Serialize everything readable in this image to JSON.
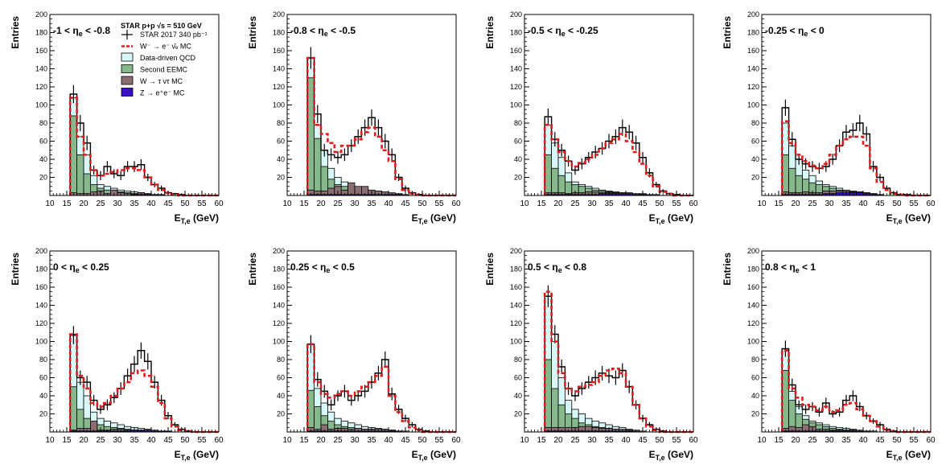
{
  "common": {
    "ylabel": "Entries",
    "xlabel_main": "E",
    "xlabel_sub": "T,e",
    "xlabel_unit": " (GeV)",
    "xlim": [
      10,
      60
    ],
    "ylim": [
      0,
      200
    ],
    "xticks": [
      10,
      15,
      20,
      25,
      30,
      35,
      40,
      45,
      50,
      55,
      60
    ],
    "yticks": [
      20,
      40,
      60,
      80,
      100,
      120,
      140,
      160,
      180,
      200
    ],
    "bin_width": 2
  },
  "legend": {
    "header_left": "STAR p+p",
    "header_right": "√s = 510 GeV",
    "items": [
      {
        "key": "data",
        "label": "STAR 2017 340 pb⁻¹"
      },
      {
        "key": "wmc",
        "label": "W⁻ → e⁻ ν̄ₑ MC"
      },
      {
        "key": "qcd",
        "label": "Data-driven QCD"
      },
      {
        "key": "eemc",
        "label": "Second EEMC"
      },
      {
        "key": "wtau",
        "label": "W → τ ντ MC"
      },
      {
        "key": "z",
        "label": "Z → e⁺e⁻ MC"
      }
    ]
  },
  "colors": {
    "qcd": "#d8f7f7",
    "eemc": "#86b88c",
    "wtau": "#8a6e74",
    "z": "#3b10c8",
    "wmc": "#e31b1b",
    "data": "#000000"
  },
  "chart_data": [
    {
      "type": "histogram",
      "eta_lo": "-1",
      "eta_hi": "-0.8",
      "x_edges": [
        16,
        18,
        20,
        22,
        24,
        26,
        28,
        30,
        32,
        34,
        36,
        38,
        40,
        42,
        44,
        46,
        48,
        50,
        52,
        54,
        56,
        58,
        60
      ],
      "data": [
        112,
        80,
        58,
        28,
        22,
        32,
        24,
        22,
        32,
        32,
        34,
        20,
        12,
        8,
        3,
        2,
        1,
        0,
        0,
        0,
        0,
        0
      ],
      "data_err": [
        10,
        9,
        8,
        5,
        5,
        6,
        5,
        5,
        6,
        6,
        6,
        4,
        3,
        3,
        2,
        1,
        1,
        0,
        0,
        0,
        0,
        0
      ],
      "wmc": [
        108,
        65,
        45,
        28,
        22,
        24,
        26,
        28,
        30,
        30,
        28,
        20,
        12,
        6,
        3,
        1,
        0,
        0,
        0,
        0,
        0,
        0
      ],
      "qcd": [
        108,
        65,
        45,
        22,
        12,
        10,
        8,
        6,
        5,
        4,
        3,
        2,
        1,
        1,
        0,
        0,
        0,
        0,
        0,
        0,
        0,
        0
      ],
      "eemc": [
        88,
        45,
        24,
        12,
        8,
        6,
        5,
        4,
        3,
        2,
        2,
        1,
        1,
        0,
        0,
        0,
        0,
        0,
        0,
        0,
        0,
        0
      ],
      "wtau": [
        3,
        2,
        2,
        4,
        5,
        2,
        6,
        3,
        2,
        2,
        3,
        2,
        1,
        1,
        0,
        0,
        0,
        0,
        0,
        0,
        0,
        0
      ],
      "z": [
        0,
        0,
        0,
        0,
        0,
        0,
        0,
        0,
        0,
        1,
        1,
        1,
        1,
        1,
        0,
        0,
        0,
        0,
        0,
        0,
        0,
        0
      ]
    },
    {
      "type": "histogram",
      "eta_lo": "-0.8",
      "eta_hi": "-0.5",
      "x_edges": [
        16,
        18,
        20,
        22,
        24,
        26,
        28,
        30,
        32,
        34,
        36,
        38,
        40,
        42,
        44,
        46,
        48,
        50,
        52,
        54,
        56,
        58,
        60
      ],
      "data": [
        152,
        90,
        50,
        45,
        42,
        45,
        55,
        65,
        75,
        86,
        75,
        60,
        45,
        20,
        8,
        3,
        1,
        0,
        0,
        0,
        0,
        0
      ],
      "data_err": [
        12,
        10,
        7,
        7,
        7,
        7,
        7,
        8,
        9,
        9,
        9,
        8,
        7,
        4,
        3,
        2,
        1,
        0,
        0,
        0,
        0,
        0
      ],
      "wmc": [
        152,
        78,
        68,
        58,
        48,
        55,
        55,
        62,
        70,
        75,
        65,
        50,
        38,
        18,
        6,
        2,
        1,
        0,
        0,
        0,
        0,
        0
      ],
      "qcd": [
        152,
        78,
        50,
        30,
        20,
        15,
        10,
        8,
        6,
        5,
        4,
        3,
        2,
        1,
        0,
        0,
        0,
        0,
        0,
        0,
        0,
        0
      ],
      "eemc": [
        130,
        63,
        32,
        18,
        12,
        10,
        8,
        6,
        4,
        3,
        2,
        2,
        1,
        0,
        0,
        0,
        0,
        0,
        0,
        0,
        0,
        0
      ],
      "wtau": [
        6,
        5,
        5,
        8,
        10,
        6,
        14,
        10,
        10,
        6,
        5,
        4,
        3,
        2,
        1,
        0,
        0,
        0,
        0,
        0,
        0,
        0
      ],
      "z": [
        1,
        1,
        1,
        1,
        1,
        1,
        1,
        1,
        1,
        1,
        1,
        1,
        1,
        1,
        0,
        0,
        0,
        0,
        0,
        0,
        0,
        0
      ]
    },
    {
      "type": "histogram",
      "eta_lo": "-0.5",
      "eta_hi": "-0.25",
      "x_edges": [
        16,
        18,
        20,
        22,
        24,
        26,
        28,
        30,
        32,
        34,
        36,
        38,
        40,
        42,
        44,
        46,
        48,
        50,
        52,
        54,
        56,
        58,
        60
      ],
      "data": [
        87,
        62,
        50,
        38,
        28,
        35,
        42,
        48,
        52,
        60,
        65,
        75,
        70,
        58,
        42,
        25,
        12,
        5,
        2,
        1,
        0,
        0
      ],
      "data_err": [
        9,
        8,
        7,
        6,
        5,
        6,
        6,
        7,
        7,
        8,
        8,
        9,
        8,
        8,
        6,
        5,
        3,
        2,
        1,
        1,
        0,
        0
      ],
      "wmc": [
        78,
        62,
        48,
        38,
        32,
        36,
        40,
        45,
        52,
        58,
        62,
        68,
        60,
        48,
        35,
        22,
        10,
        4,
        2,
        0,
        0,
        0
      ],
      "qcd": [
        78,
        58,
        42,
        25,
        15,
        12,
        10,
        8,
        6,
        5,
        4,
        3,
        2,
        1,
        1,
        0,
        0,
        0,
        0,
        0,
        0,
        0
      ],
      "eemc": [
        45,
        30,
        22,
        15,
        12,
        10,
        8,
        6,
        5,
        4,
        3,
        2,
        2,
        1,
        1,
        0,
        0,
        0,
        0,
        0,
        0,
        0
      ],
      "wtau": [
        3,
        3,
        3,
        2,
        3,
        3,
        4,
        4,
        3,
        3,
        3,
        3,
        3,
        2,
        2,
        1,
        1,
        0,
        0,
        0,
        0,
        0
      ],
      "z": [
        1,
        1,
        1,
        1,
        1,
        1,
        1,
        1,
        2,
        2,
        2,
        2,
        2,
        1,
        1,
        1,
        0,
        0,
        0,
        0,
        0,
        0
      ]
    },
    {
      "type": "histogram",
      "eta_lo": "-0.25",
      "eta_hi": "0",
      "x_edges": [
        16,
        18,
        20,
        22,
        24,
        26,
        28,
        30,
        32,
        34,
        36,
        38,
        40,
        42,
        44,
        46,
        48,
        50,
        52,
        54,
        56,
        58,
        60
      ],
      "data": [
        97,
        62,
        40,
        35,
        32,
        30,
        32,
        40,
        55,
        70,
        72,
        80,
        68,
        32,
        20,
        8,
        3,
        1,
        1,
        0,
        0,
        0
      ],
      "data_err": [
        9,
        8,
        6,
        6,
        6,
        6,
        6,
        6,
        7,
        8,
        8,
        9,
        8,
        6,
        4,
        3,
        2,
        1,
        1,
        0,
        0,
        0
      ],
      "wmc": [
        82,
        58,
        45,
        38,
        33,
        30,
        35,
        45,
        55,
        62,
        65,
        65,
        55,
        30,
        15,
        6,
        2,
        1,
        0,
        0,
        0,
        0
      ],
      "qcd": [
        80,
        55,
        40,
        28,
        22,
        16,
        12,
        10,
        8,
        6,
        5,
        4,
        3,
        2,
        1,
        0,
        0,
        0,
        0,
        0,
        0,
        0
      ],
      "eemc": [
        45,
        30,
        22,
        18,
        14,
        12,
        10,
        8,
        6,
        5,
        4,
        3,
        2,
        1,
        1,
        0,
        0,
        0,
        0,
        0,
        0,
        0
      ],
      "wtau": [
        4,
        3,
        3,
        4,
        3,
        3,
        5,
        5,
        5,
        5,
        4,
        4,
        3,
        2,
        1,
        0,
        0,
        0,
        0,
        0,
        0,
        0
      ],
      "z": [
        1,
        1,
        1,
        1,
        1,
        1,
        2,
        2,
        3,
        3,
        3,
        3,
        2,
        1,
        1,
        0,
        0,
        0,
        0,
        0,
        0,
        0
      ]
    },
    {
      "type": "histogram",
      "eta_lo": "0",
      "eta_hi": "0.25",
      "x_edges": [
        16,
        18,
        20,
        22,
        24,
        26,
        28,
        30,
        32,
        34,
        36,
        38,
        40,
        42,
        44,
        46,
        48,
        50,
        52,
        54,
        56,
        58,
        60
      ],
      "data": [
        107,
        60,
        55,
        35,
        25,
        30,
        38,
        48,
        62,
        75,
        90,
        78,
        55,
        35,
        18,
        8,
        3,
        1,
        0,
        0,
        0,
        0
      ],
      "data_err": [
        10,
        8,
        7,
        6,
        5,
        6,
        6,
        7,
        8,
        9,
        9,
        9,
        7,
        6,
        4,
        3,
        2,
        1,
        0,
        0,
        0,
        0
      ],
      "wmc": [
        108,
        62,
        48,
        32,
        28,
        32,
        40,
        48,
        55,
        65,
        68,
        62,
        50,
        32,
        15,
        6,
        2,
        1,
        0,
        0,
        0,
        0
      ],
      "qcd": [
        108,
        55,
        40,
        22,
        15,
        12,
        10,
        8,
        6,
        5,
        4,
        3,
        2,
        1,
        1,
        0,
        0,
        0,
        0,
        0,
        0,
        0
      ],
      "eemc": [
        50,
        25,
        15,
        10,
        8,
        6,
        5,
        4,
        3,
        2,
        2,
        1,
        1,
        0,
        0,
        0,
        0,
        0,
        0,
        0,
        0,
        0
      ],
      "wtau": [
        2,
        4,
        4,
        12,
        2,
        2,
        3,
        3,
        2,
        2,
        2,
        2,
        1,
        1,
        0,
        0,
        0,
        0,
        0,
        0,
        0,
        0
      ],
      "z": [
        1,
        1,
        1,
        1,
        1,
        1,
        1,
        1,
        1,
        2,
        2,
        2,
        1,
        1,
        1,
        0,
        0,
        0,
        0,
        0,
        0,
        0
      ]
    },
    {
      "type": "histogram",
      "eta_lo": "0.25",
      "eta_hi": "0.5",
      "x_edges": [
        16,
        18,
        20,
        22,
        24,
        26,
        28,
        30,
        32,
        34,
        36,
        38,
        40,
        42,
        44,
        46,
        48,
        50,
        52,
        54,
        56,
        58,
        60
      ],
      "data": [
        97,
        58,
        45,
        30,
        40,
        45,
        35,
        40,
        45,
        55,
        65,
        80,
        42,
        25,
        15,
        8,
        3,
        1,
        0,
        0,
        0,
        0
      ],
      "data_err": [
        10,
        8,
        7,
        6,
        6,
        7,
        6,
        6,
        7,
        7,
        8,
        9,
        7,
        5,
        4,
        3,
        2,
        1,
        0,
        0,
        0,
        0
      ],
      "wmc": [
        97,
        55,
        42,
        38,
        42,
        45,
        40,
        45,
        50,
        55,
        62,
        72,
        40,
        22,
        12,
        5,
        2,
        0,
        0,
        0,
        0,
        0
      ],
      "qcd": [
        97,
        48,
        32,
        22,
        15,
        12,
        10,
        8,
        6,
        5,
        4,
        3,
        2,
        1,
        1,
        0,
        0,
        0,
        0,
        0,
        0,
        0
      ],
      "eemc": [
        46,
        28,
        18,
        12,
        8,
        6,
        5,
        4,
        3,
        3,
        2,
        2,
        1,
        1,
        0,
        0,
        0,
        0,
        0,
        0,
        0,
        0
      ],
      "wtau": [
        5,
        3,
        8,
        3,
        4,
        4,
        3,
        4,
        3,
        3,
        3,
        3,
        2,
        1,
        0,
        0,
        0,
        0,
        0,
        0,
        0,
        0
      ],
      "z": [
        1,
        1,
        1,
        1,
        1,
        1,
        1,
        1,
        1,
        1,
        1,
        1,
        1,
        0,
        0,
        0,
        0,
        0,
        0,
        0,
        0,
        0
      ]
    },
    {
      "type": "histogram",
      "eta_lo": "0.5",
      "eta_hi": "0.8",
      "x_edges": [
        16,
        18,
        20,
        22,
        24,
        26,
        28,
        30,
        32,
        34,
        36,
        38,
        40,
        42,
        44,
        46,
        48,
        50,
        52,
        54,
        56,
        58,
        60
      ],
      "data": [
        150,
        108,
        72,
        48,
        40,
        48,
        55,
        60,
        65,
        62,
        60,
        68,
        50,
        30,
        15,
        8,
        3,
        1,
        0,
        0,
        0,
        0
      ],
      "data_err": [
        12,
        10,
        8,
        7,
        6,
        7,
        7,
        8,
        8,
        8,
        8,
        8,
        7,
        5,
        4,
        3,
        2,
        1,
        0,
        0,
        0,
        0
      ],
      "wmc": [
        155,
        100,
        65,
        48,
        45,
        50,
        52,
        55,
        62,
        68,
        70,
        65,
        50,
        30,
        15,
        6,
        2,
        0,
        0,
        0,
        0,
        0
      ],
      "qcd": [
        150,
        100,
        60,
        35,
        25,
        20,
        15,
        12,
        10,
        8,
        6,
        5,
        3,
        2,
        1,
        0,
        0,
        0,
        0,
        0,
        0,
        0
      ],
      "eemc": [
        80,
        48,
        30,
        20,
        15,
        10,
        8,
        6,
        5,
        4,
        3,
        2,
        2,
        1,
        0,
        0,
        0,
        0,
        0,
        0,
        0,
        0
      ],
      "wtau": [
        5,
        5,
        5,
        5,
        5,
        6,
        6,
        5,
        4,
        4,
        3,
        3,
        2,
        1,
        0,
        0,
        0,
        0,
        0,
        0,
        0,
        0
      ],
      "z": [
        1,
        1,
        1,
        1,
        1,
        1,
        1,
        1,
        1,
        1,
        1,
        1,
        1,
        0,
        0,
        0,
        0,
        0,
        0,
        0,
        0,
        0
      ]
    },
    {
      "type": "histogram",
      "eta_lo": "0.8",
      "eta_hi": "1",
      "x_edges": [
        16,
        18,
        20,
        22,
        24,
        26,
        28,
        30,
        32,
        34,
        36,
        38,
        40,
        42,
        44,
        46,
        48,
        50,
        52,
        54,
        56,
        58,
        60
      ],
      "data": [
        92,
        52,
        30,
        25,
        28,
        22,
        32,
        20,
        22,
        35,
        40,
        28,
        18,
        12,
        8,
        3,
        1,
        0,
        0,
        0,
        0,
        0
      ],
      "data_err": [
        9,
        7,
        5,
        5,
        5,
        5,
        6,
        4,
        5,
        6,
        6,
        5,
        4,
        3,
        3,
        2,
        1,
        0,
        0,
        0,
        0,
        0
      ],
      "wmc": [
        90,
        48,
        38,
        30,
        28,
        24,
        28,
        22,
        24,
        30,
        32,
        25,
        18,
        12,
        6,
        2,
        1,
        0,
        0,
        0,
        0,
        0
      ],
      "qcd": [
        92,
        45,
        28,
        18,
        12,
        10,
        8,
        6,
        5,
        4,
        3,
        2,
        1,
        1,
        0,
        0,
        0,
        0,
        0,
        0,
        0,
        0
      ],
      "eemc": [
        68,
        35,
        20,
        14,
        10,
        8,
        6,
        4,
        3,
        2,
        2,
        1,
        1,
        0,
        0,
        0,
        0,
        0,
        0,
        0,
        0,
        0
      ],
      "wtau": [
        4,
        6,
        5,
        8,
        6,
        3,
        3,
        2,
        2,
        2,
        2,
        1,
        1,
        0,
        0,
        0,
        0,
        0,
        0,
        0,
        0,
        0
      ],
      "z": [
        1,
        1,
        1,
        1,
        1,
        1,
        1,
        1,
        1,
        1,
        1,
        1,
        0,
        0,
        0,
        0,
        0,
        0,
        0,
        0,
        0,
        0
      ]
    }
  ]
}
